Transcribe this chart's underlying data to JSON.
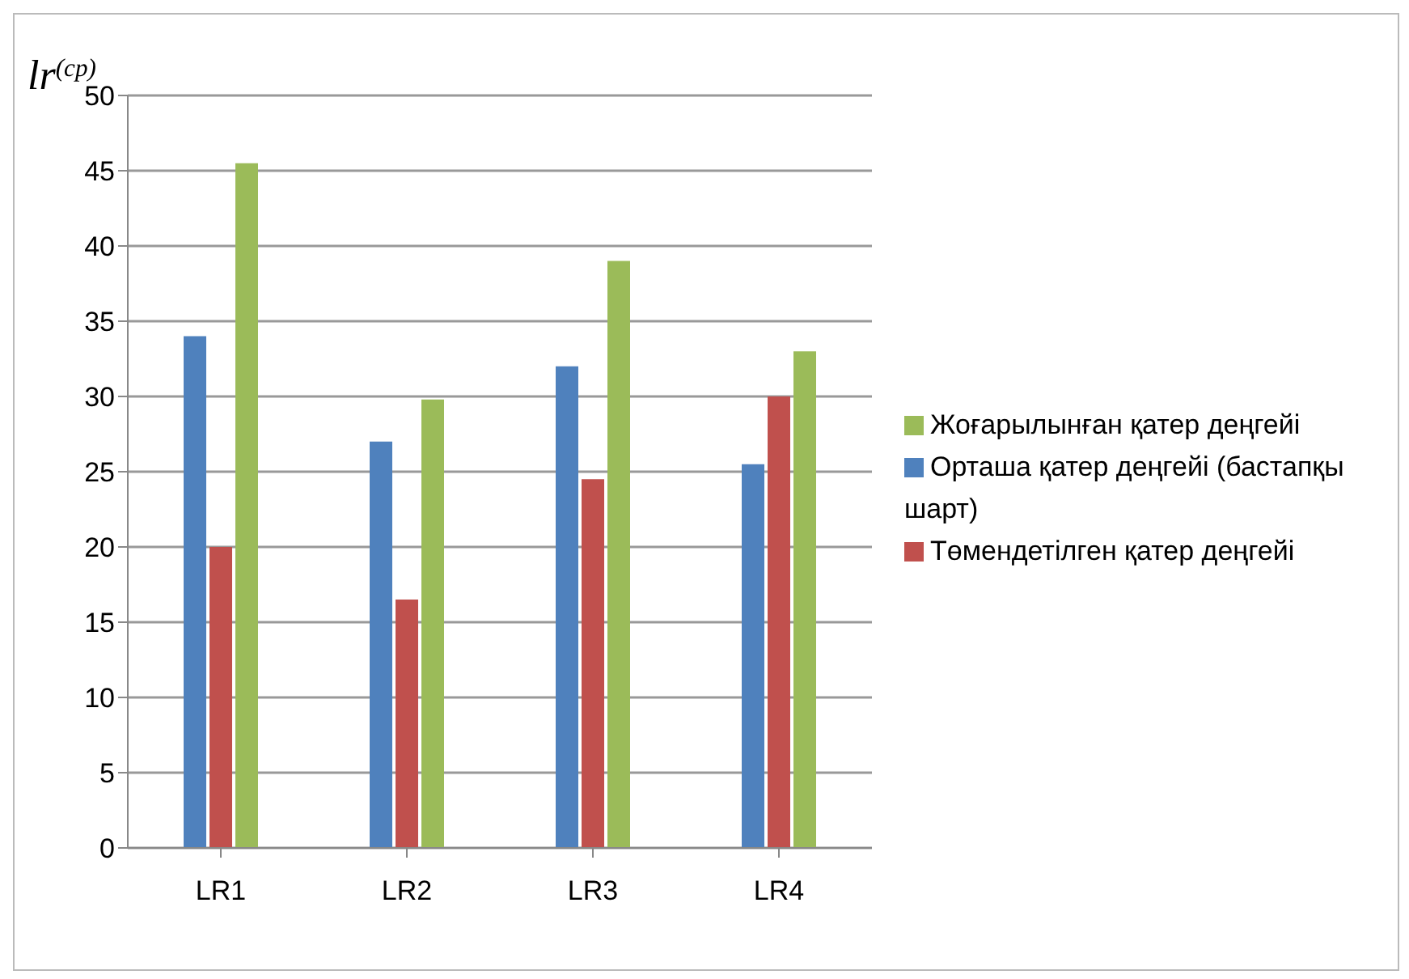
{
  "chart_data": {
    "type": "bar",
    "ylabel": "lr$^{(cp)}$",
    "categories": [
      "LR1",
      "LR2",
      "LR3",
      "LR4"
    ],
    "series": [
      {
        "name": "Орташа қатер деңгейі (бастапқы шарт)",
        "color": "#4f81bd",
        "values": [
          34,
          27,
          32,
          25.5
        ]
      },
      {
        "name": "Төмендетілген қатер деңгейі",
        "color": "#c0504d",
        "values": [
          20,
          16.5,
          24.5,
          30
        ]
      },
      {
        "name": "Жоғарылынған қатер деңгейі",
        "color": "#9bbb59",
        "values": [
          45.5,
          29.8,
          39,
          33
        ]
      }
    ],
    "ylim": [
      0,
      50
    ],
    "yticks": [
      0,
      5,
      10,
      15,
      20,
      25,
      30,
      35,
      40,
      45,
      50
    ],
    "grid": "y",
    "legend": "right"
  }
}
